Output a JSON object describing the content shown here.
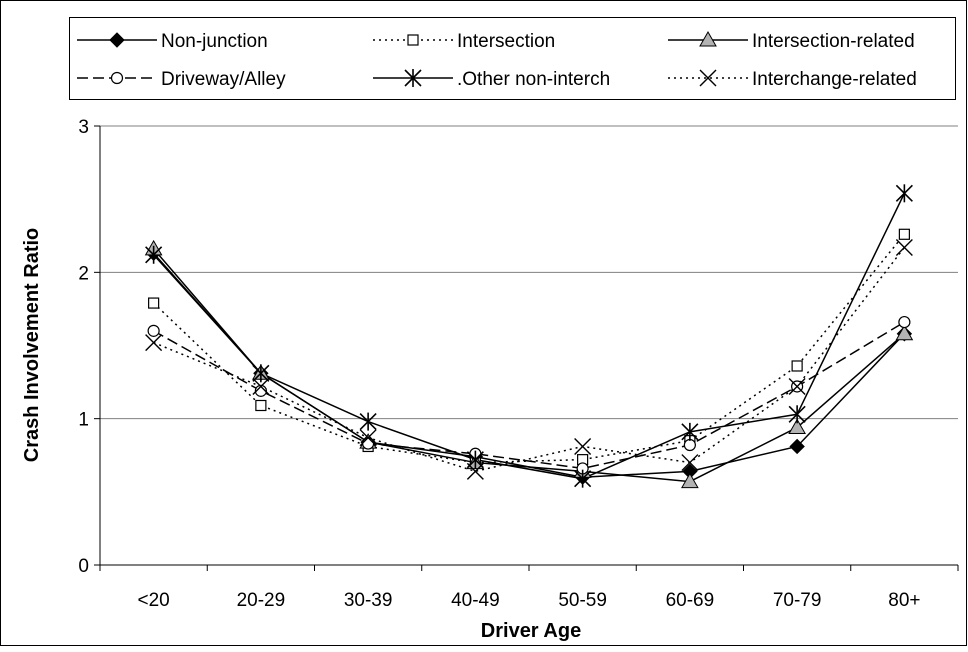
{
  "chart_data": {
    "type": "line",
    "title": "",
    "xlabel": "Driver Age",
    "ylabel": "Crash Involvement Ratio",
    "categories": [
      "<20",
      "20-29",
      "30-39",
      "40-49",
      "50-59",
      "60-69",
      "70-79",
      "80+"
    ],
    "ylim": [
      0,
      3
    ],
    "yticks": [
      "0",
      "1",
      "2",
      "3"
    ],
    "grid": "horizontal",
    "legend_position": "top",
    "series": [
      {
        "name": "Non-junction",
        "marker": "diamond",
        "line": "solid",
        "values": [
          2.13,
          1.31,
          0.84,
          0.74,
          0.6,
          0.64,
          0.81,
          1.58
        ]
      },
      {
        "name": "Intersection",
        "marker": "square-open",
        "line": "dotted",
        "values": [
          1.79,
          1.09,
          0.81,
          0.7,
          0.72,
          0.85,
          1.36,
          2.26
        ]
      },
      {
        "name": "Intersection-related",
        "marker": "triangle-gray",
        "line": "solid",
        "values": [
          2.16,
          1.31,
          0.84,
          0.7,
          0.64,
          0.57,
          0.94,
          1.58
        ]
      },
      {
        "name": "Driveway/Alley",
        "marker": "circle-open",
        "line": "dashed",
        "values": [
          1.6,
          1.19,
          0.83,
          0.76,
          0.66,
          0.82,
          1.22,
          1.66
        ]
      },
      {
        "name": ".Other non-interch",
        "marker": "asterisk",
        "line": "solid",
        "values": [
          2.12,
          1.31,
          0.98,
          0.72,
          0.59,
          0.91,
          1.03,
          2.54
        ]
      },
      {
        "name": "Interchange-related",
        "marker": "x",
        "line": "dotted",
        "values": [
          1.52,
          1.22,
          0.87,
          0.64,
          0.81,
          0.7,
          1.22,
          2.17
        ]
      }
    ]
  }
}
